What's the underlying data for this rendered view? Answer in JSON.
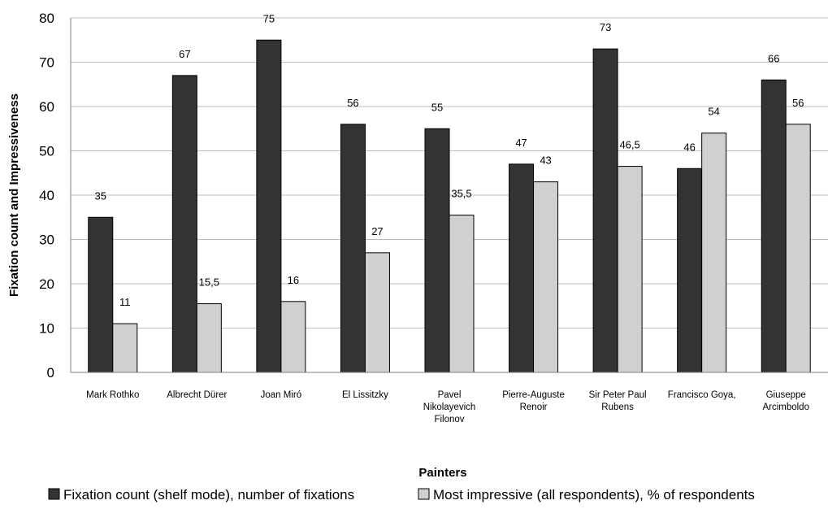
{
  "chart_data": {
    "type": "bar",
    "categories": [
      [
        "Mark Rothko"
      ],
      [
        "Albrecht Dürer"
      ],
      [
        "Joan Miró"
      ],
      [
        "El Lissitzky"
      ],
      [
        "Pavel",
        "Nikolayevich",
        "Filonov"
      ],
      [
        "Pierre-Auguste",
        "Renoir"
      ],
      [
        "Sir Peter Paul",
        "Rubens"
      ],
      [
        "Francisco Goya,"
      ],
      [
        "Giuseppe",
        "Arcimboldo"
      ]
    ],
    "series": [
      {
        "name": "Fixation count (shelf mode), number of fixations",
        "color": "#333333",
        "values": [
          35,
          67,
          75,
          56,
          55,
          47,
          73,
          46,
          66
        ],
        "labels": [
          "35",
          "67",
          "75",
          "56",
          "55",
          "47",
          "73",
          "46",
          "66"
        ]
      },
      {
        "name": "Most impressive (all respondents), % of respondents",
        "color": "#d0d0d0",
        "values": [
          11,
          15.5,
          16,
          27,
          35.5,
          43,
          46.5,
          54,
          56
        ],
        "labels": [
          "11",
          "15,5",
          "16",
          "27",
          "35,5",
          "43",
          "46,5",
          "54",
          "56"
        ]
      }
    ],
    "xlabel": "Painters",
    "ylabel": "Fixation count and Impressiveness",
    "ylim": [
      0,
      80
    ],
    "yticks": [
      "0",
      "10",
      "20",
      "30",
      "40",
      "50",
      "60",
      "70",
      "80"
    ],
    "grid": true,
    "legend": "bottom"
  }
}
